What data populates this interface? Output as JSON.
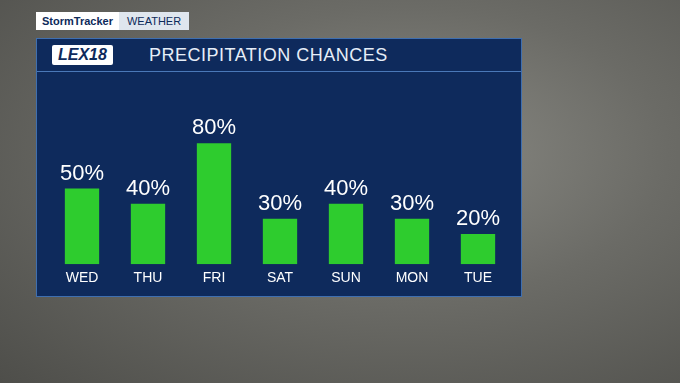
{
  "header": {
    "brand": "StormTracker",
    "section": "WEATHER",
    "logo": "LEX18"
  },
  "chart_data": {
    "type": "bar",
    "title": "PRECIPITATION CHANCES",
    "categories": [
      "WED",
      "THU",
      "FRI",
      "SAT",
      "SUN",
      "MON",
      "TUE"
    ],
    "values": [
      50,
      40,
      80,
      30,
      40,
      30,
      20
    ],
    "value_labels": [
      "50%",
      "40%",
      "80%",
      "30%",
      "40%",
      "30%",
      "20%"
    ],
    "color": "#2ecc2e",
    "ylim": [
      0,
      100
    ],
    "grid": false,
    "data_labels": true,
    "tick_labels": "x"
  }
}
